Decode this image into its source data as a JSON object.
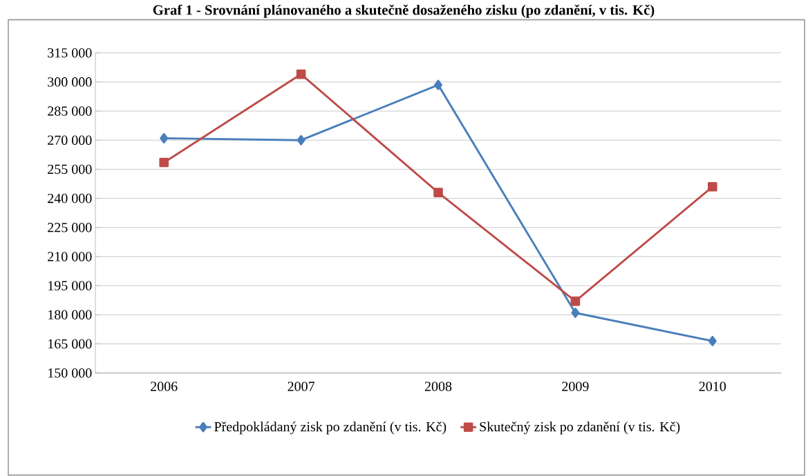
{
  "chart_data": {
    "type": "line",
    "title": "Graf 1 - Srovnání plánovaného a skutečně dosaženého zisku (po zdanění, v tis. Kč)",
    "categories": [
      "2006",
      "2007",
      "2008",
      "2009",
      "2010"
    ],
    "series": [
      {
        "name": "Předpokládaný zisk po zdanění (v tis. Kč)",
        "color": "#4a7ebb",
        "marker": "diamond",
        "values": [
          271000,
          270000,
          298500,
          181000,
          166500
        ]
      },
      {
        "name": "Skutečný zisk po zdanění (v tis. Kč)",
        "color": "#be4b48",
        "marker": "square",
        "values": [
          258500,
          304000,
          243000,
          187000,
          246000
        ]
      }
    ],
    "ylim": [
      150000,
      315000
    ],
    "yticks": [
      {
        "value": 150000,
        "label": "150 000"
      },
      {
        "value": 165000,
        "label": "165 000"
      },
      {
        "value": 180000,
        "label": "180 000"
      },
      {
        "value": 195000,
        "label": "195 000"
      },
      {
        "value": 210000,
        "label": "210 000"
      },
      {
        "value": 225000,
        "label": "225 000"
      },
      {
        "value": 240000,
        "label": "240 000"
      },
      {
        "value": 255000,
        "label": "255 000"
      },
      {
        "value": 270000,
        "label": "270 000"
      },
      {
        "value": 285000,
        "label": "285 000"
      },
      {
        "value": 300000,
        "label": "300 000"
      },
      {
        "value": 315000,
        "label": "315 000"
      }
    ],
    "grid": "y",
    "legend": "bottom",
    "line_style": "solid"
  }
}
